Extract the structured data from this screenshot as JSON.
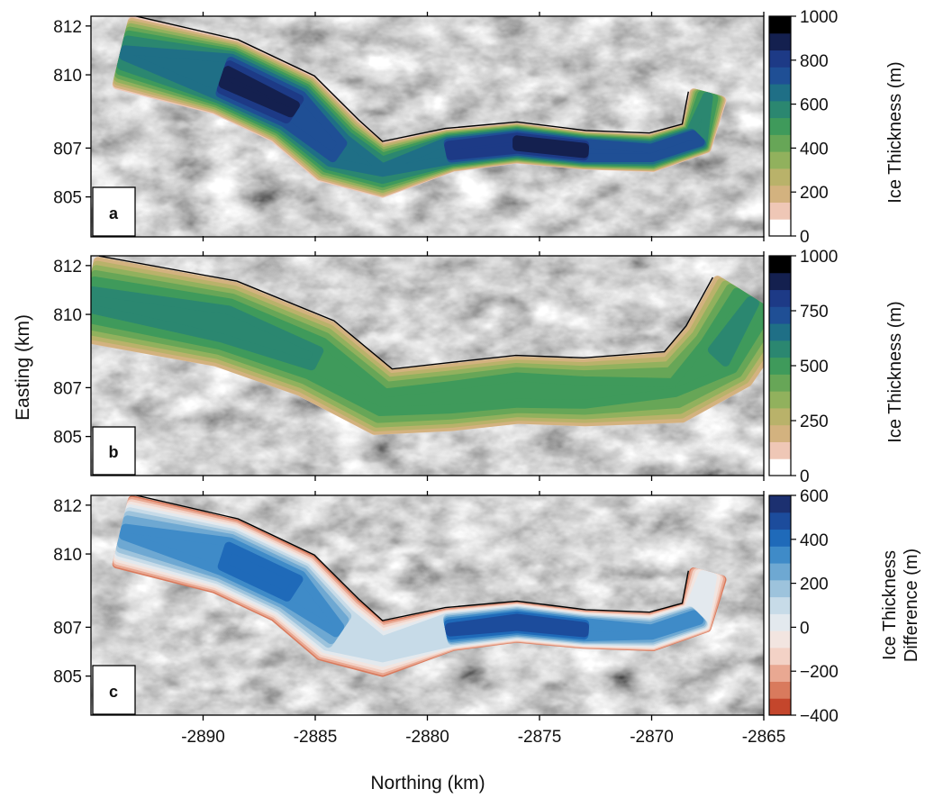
{
  "figure": {
    "xlabel": "Northing (km)",
    "ylabel": "Easting (km)"
  },
  "chart_data": [
    {
      "type": "heatmap",
      "panel_label": "a",
      "x_ticks": [
        -2890,
        -2885,
        -2880,
        -2875,
        -2870,
        -2865
      ],
      "x_tick_labels": [
        "",
        "",
        "",
        "",
        "",
        ""
      ],
      "y_ticks": [
        812,
        810,
        807,
        805
      ],
      "xlim": [
        -2895,
        -2865
      ],
      "ylim": [
        803.4,
        812.4
      ],
      "colorbar": {
        "label": "Ice Thickness (m)",
        "range": [
          0,
          1000
        ],
        "ticks": [
          0,
          200,
          400,
          600,
          800,
          1000
        ],
        "colors": [
          "#ffffff",
          "#efc7b6",
          "#d3b27f",
          "#b9b26a",
          "#91b15d",
          "#67a657",
          "#3f9a5b",
          "#2b8770",
          "#1f6f86",
          "#1f4f95",
          "#1d3a86",
          "#14204f",
          "#000000"
        ]
      },
      "centerline": [
        [
          -2893.5,
          810.9
        ],
        [
          -2889,
          809.9
        ],
        [
          -2886,
          808.6
        ],
        [
          -2884,
          806.9
        ],
        [
          -2882,
          806.1
        ],
        [
          -2879,
          806.9
        ],
        [
          -2876,
          807.2
        ],
        [
          -2873,
          806.9
        ],
        [
          -2870,
          806.8
        ],
        [
          -2868,
          807.4
        ],
        [
          -2867.5,
          809.1
        ]
      ],
      "width_km": [
        2.7,
        2.8,
        2.8,
        2.6,
        1.9,
        1.4,
        1.3,
        1.2,
        1.2,
        1.2,
        1.2
      ],
      "peak_m": [
        620,
        880,
        860,
        740,
        620,
        840,
        880,
        880,
        760,
        780,
        540
      ],
      "edge_m": 110
    },
    {
      "type": "heatmap",
      "panel_label": "b",
      "x_ticks": [
        -2890,
        -2885,
        -2880,
        -2875,
        -2870,
        -2865
      ],
      "x_tick_labels": [
        "",
        "",
        "",
        "",
        "",
        ""
      ],
      "y_ticks": [
        812,
        810,
        807,
        805
      ],
      "xlim": [
        -2895,
        -2865
      ],
      "ylim": [
        803.4,
        812.4
      ],
      "colorbar": {
        "label": "Ice Thickness (m)",
        "range": [
          0,
          1000
        ],
        "ticks": [
          0,
          250,
          500,
          750,
          1000
        ],
        "colors": [
          "#ffffff",
          "#efc7b6",
          "#d3b27f",
          "#b9b26a",
          "#91b15d",
          "#67a657",
          "#3f9a5b",
          "#2b8770",
          "#1f6f86",
          "#1f4f95",
          "#1d3a86",
          "#14204f",
          "#000000"
        ]
      },
      "centerline": [
        [
          -2895,
          810.6
        ],
        [
          -2889,
          809.6
        ],
        [
          -2885,
          808.2
        ],
        [
          -2882,
          806.4
        ],
        [
          -2879,
          806.6
        ],
        [
          -2876,
          806.9
        ],
        [
          -2873,
          806.8
        ],
        [
          -2869,
          807.0
        ],
        [
          -2867,
          808.3
        ],
        [
          -2865.5,
          810.5
        ]
      ],
      "width_km": [
        3.2,
        3.2,
        3.0,
        2.4,
        2.4,
        2.4,
        2.4,
        2.6,
        3.2,
        3.4
      ],
      "peak_m": [
        560,
        600,
        560,
        500,
        520,
        540,
        520,
        470,
        560,
        540
      ],
      "edge_m": 150
    },
    {
      "type": "heatmap",
      "panel_label": "c",
      "x_ticks": [
        -2890,
        -2885,
        -2880,
        -2875,
        -2870,
        -2865
      ],
      "x_tick_labels": [
        "-2890",
        "-2885",
        "-2880",
        "-2875",
        "-2870",
        "-2865"
      ],
      "y_ticks": [
        812,
        810,
        807,
        805
      ],
      "xlim": [
        -2895,
        -2865
      ],
      "ylim": [
        803.4,
        812.4
      ],
      "colorbar": {
        "label": "Ice Thickness Difference (m)",
        "label_lines": [
          "Ice Thickness",
          "Difference (m)"
        ],
        "range": [
          -400,
          600
        ],
        "ticks": [
          -400,
          -200,
          0,
          200,
          400,
          600
        ],
        "colors": [
          "#c4462c",
          "#d97a5d",
          "#e9a892",
          "#f3d2c6",
          "#f2e5e0",
          "#e3e9ee",
          "#c7dbe8",
          "#9dc3dc",
          "#6ea8d2",
          "#3f8bc8",
          "#1f6ab9",
          "#1c4c9c",
          "#1c3070"
        ]
      },
      "centerline": [
        [
          -2893.5,
          810.9
        ],
        [
          -2889,
          809.9
        ],
        [
          -2886,
          808.6
        ],
        [
          -2884,
          806.9
        ],
        [
          -2882,
          806.1
        ],
        [
          -2879,
          806.9
        ],
        [
          -2876,
          807.2
        ],
        [
          -2873,
          806.9
        ],
        [
          -2870,
          806.8
        ],
        [
          -2868,
          807.4
        ],
        [
          -2867.5,
          809.1
        ]
      ],
      "width_km": [
        2.7,
        2.8,
        2.8,
        2.6,
        1.9,
        1.4,
        1.3,
        1.2,
        1.2,
        1.2,
        1.2
      ],
      "peak_m": [
        300,
        440,
        440,
        300,
        120,
        460,
        500,
        480,
        320,
        340,
        20
      ],
      "edge_m": -300
    }
  ]
}
